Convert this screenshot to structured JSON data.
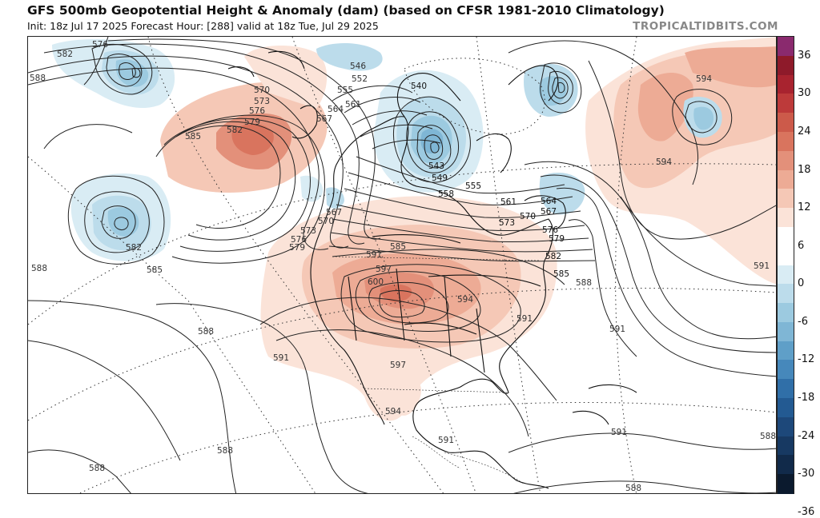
{
  "header": {
    "title": "GFS 500mb Geopotential Height & Anomaly (dam) (based on CFSR 1981-2010 Climatology)",
    "subtitle": "Init: 18z Jul 17 2025   Forecast Hour: [288]   valid at 18z Tue, Jul 29 2025",
    "brand": "TROPICALTIDBITS.COM"
  },
  "colorbar": {
    "labels": [
      "36",
      "30",
      "24",
      "18",
      "12",
      "6",
      "0",
      "-6",
      "-12",
      "-18",
      "-24",
      "-30",
      "-36"
    ],
    "colors": [
      "#8a2a6e",
      "#8e1a2a",
      "#a8232f",
      "#bd3a3a",
      "#cc5a4a",
      "#d9745e",
      "#e3907a",
      "#edab95",
      "#f5c8b6",
      "#fbe3d8",
      "#ffffff",
      "#ffffff",
      "#d9ecf4",
      "#bcdceb",
      "#9ccae0",
      "#7fb6d5",
      "#5f9fc8",
      "#4688bb",
      "#306fa8",
      "#235a92",
      "#1d487a",
      "#173962",
      "#112a4a",
      "#0b1a2e"
    ]
  },
  "contour_labels": {
    "l546": "546",
    "l552": "552",
    "l555": "555",
    "l561a": "561",
    "l564a": "564",
    "l567a": "567",
    "l570a": "570",
    "l573a": "573",
    "l576a": "576",
    "l579a": "579",
    "l582a": "582",
    "l585a": "585",
    "l540": "540",
    "l543": "543",
    "l549": "549",
    "l555b": "555",
    "l558": "558",
    "l561b": "561",
    "l564b": "564",
    "l567b": "567",
    "l570b": "570",
    "l573b": "573",
    "l576b": "576",
    "l579b": "579",
    "l582b": "582",
    "l585b": "585",
    "l588a": "588",
    "l591a": "591",
    "l597a": "597",
    "l600": "600",
    "l594a": "594",
    "l591b": "591",
    "l597b": "597",
    "l594b": "594",
    "l591c": "591",
    "l591d": "591",
    "l588b": "588",
    "l591e": "591",
    "l588c": "588",
    "l594c": "594",
    "l594d": "594",
    "l591f": "591",
    "l588d": "588",
    "l588e": "588",
    "l588f": "588",
    "l582c": "582",
    "l576c": "576",
    "l588g": "588",
    "l588h": "588",
    "l582d": "582",
    "l585c": "585",
    "l591g": "591",
    "l573c": "573",
    "l576d": "576",
    "l579c": "579",
    "l567c": "567",
    "l570c": "570",
    "l582e": "582",
    "l585d": "585",
    "l588i": "588"
  }
}
